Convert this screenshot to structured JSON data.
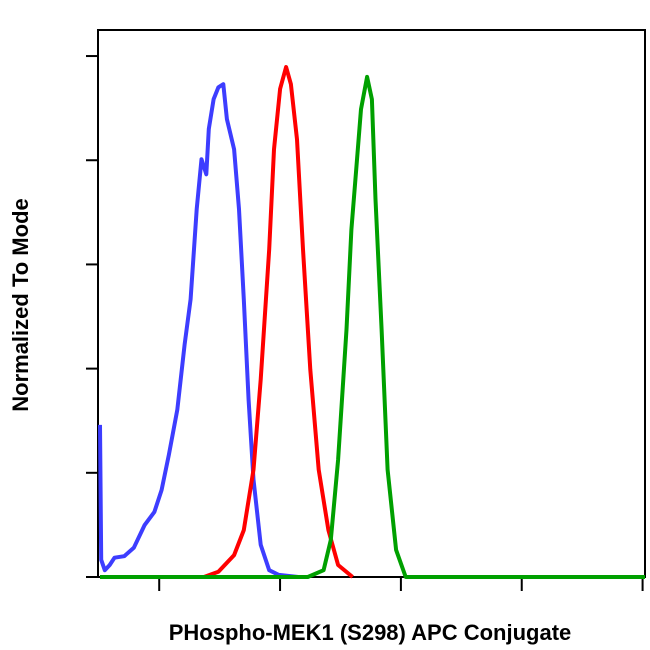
{
  "chart_data": {
    "type": "line",
    "x_label": "PHospho-MEK1 (S298) APC Conjugate",
    "y_label": "Normalized To Mode",
    "xlim": [
      1.51,
      6.02
    ],
    "xticks": [
      2,
      3,
      4,
      5,
      6
    ],
    "ylim": [
      0,
      105
    ],
    "yticks": [
      0,
      20,
      40,
      60,
      80,
      100
    ],
    "series": [
      {
        "color": "#3d3dff",
        "x": [
          1.51,
          1.52,
          1.55,
          1.59,
          1.63,
          1.71,
          1.79,
          1.88,
          1.96,
          2.02,
          2.08,
          2.15,
          2.21,
          2.26,
          2.31,
          2.35,
          2.39,
          2.41,
          2.45,
          2.49,
          2.53,
          2.56,
          2.62,
          2.66,
          2.7,
          2.74,
          2.78,
          2.84,
          2.91,
          2.99,
          3.15
        ],
        "values": [
          29.2,
          3.3,
          1.3,
          2.3,
          3.7,
          4.0,
          5.6,
          10.0,
          12.5,
          16.7,
          23.5,
          32.1,
          44.6,
          53.3,
          70.6,
          80.2,
          77.3,
          86.0,
          91.7,
          94.0,
          94.6,
          87.9,
          82.1,
          70.6,
          53.3,
          34.0,
          18.7,
          6.2,
          1.3,
          0.4,
          0
        ]
      },
      {
        "color": "#ff0000",
        "x": [
          2.37,
          2.49,
          2.62,
          2.7,
          2.78,
          2.84,
          2.91,
          2.95,
          3.0,
          3.05,
          3.09,
          3.14,
          3.19,
          3.25,
          3.32,
          3.4,
          3.48,
          3.6
        ],
        "values": [
          0,
          1.0,
          4.2,
          9.0,
          20.6,
          37.9,
          62.9,
          82.1,
          93.7,
          97.9,
          94.6,
          84.0,
          62.9,
          39.8,
          20.6,
          9.0,
          2.3,
          0
        ]
      },
      {
        "color": "#00a000",
        "x": [
          1.51,
          3.23,
          3.36,
          3.42,
          3.48,
          3.55,
          3.59,
          3.63,
          3.67,
          3.72,
          3.76,
          3.79,
          3.84,
          3.89,
          3.96,
          4.04,
          6.02
        ],
        "values": [
          0,
          0,
          1.3,
          7.1,
          22.5,
          47.5,
          66.7,
          78.2,
          89.8,
          96.0,
          91.7,
          72.5,
          47.5,
          20.6,
          5.2,
          0,
          0
        ]
      }
    ]
  }
}
